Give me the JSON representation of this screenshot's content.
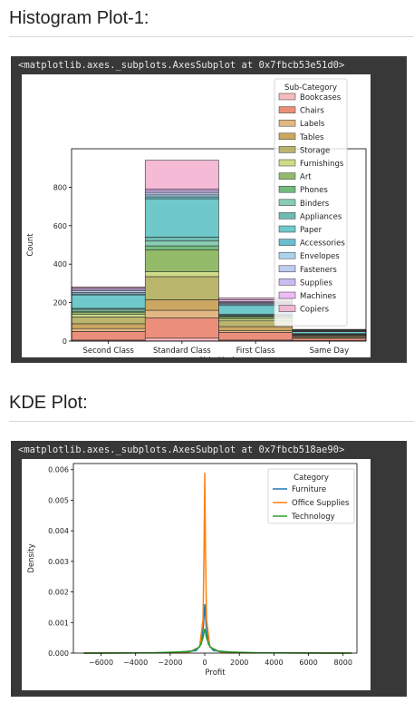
{
  "page": {
    "section1_title": "Histogram Plot-1:",
    "section2_title": "KDE Plot:",
    "output1": "<matplotlib.axes._subplots.AxesSubplot at 0x7fbcb53e51d0>",
    "output2": "<matplotlib.axes._subplots.AxesSubplot at 0x7fbcb518ae90>"
  },
  "chart_data": [
    {
      "type": "bar",
      "stacked": true,
      "xlabel": "Ship Mode",
      "ylabel": "Count",
      "categories": [
        "Second Class",
        "Standard Class",
        "First Class",
        "Same Day"
      ],
      "ylim": [
        0,
        1000
      ],
      "yticks": [
        0,
        200,
        400,
        600,
        800
      ],
      "legend_title": "Sub-Category",
      "legend_position": "upper right",
      "series": [
        {
          "name": "Bookcases",
          "color": "#f6a3ad",
          "values": [
            5,
            15,
            5,
            2
          ]
        },
        {
          "name": "Chairs",
          "color": "#e4694d",
          "values": [
            45,
            105,
            40,
            12
          ]
        },
        {
          "name": "Labels",
          "color": "#d99f5a",
          "values": [
            15,
            40,
            10,
            5
          ]
        },
        {
          "name": "Tables",
          "color": "#bb8a2c",
          "values": [
            25,
            55,
            20,
            5
          ]
        },
        {
          "name": "Storage",
          "color": "#a39e3c",
          "values": [
            35,
            120,
            30,
            5
          ]
        },
        {
          "name": "Furnishings",
          "color": "#bfcf62",
          "values": [
            15,
            25,
            10,
            2
          ]
        },
        {
          "name": "Art",
          "color": "#6ea337",
          "values": [
            10,
            115,
            10,
            2
          ]
        },
        {
          "name": "Phones",
          "color": "#44a454",
          "values": [
            5,
            20,
            5,
            2
          ]
        },
        {
          "name": "Binders",
          "color": "#61bc9a",
          "values": [
            10,
            25,
            5,
            2
          ]
        },
        {
          "name": "Appliances",
          "color": "#3fa497",
          "values": [
            5,
            20,
            5,
            2
          ]
        },
        {
          "name": "Paper",
          "color": "#3fb6b8",
          "values": [
            70,
            200,
            45,
            10
          ]
        },
        {
          "name": "Accessories",
          "color": "#3aaabd",
          "values": [
            5,
            10,
            5,
            2
          ]
        },
        {
          "name": "Envelopes",
          "color": "#8fc6e6",
          "values": [
            8,
            10,
            5,
            2
          ]
        },
        {
          "name": "Fasteners",
          "color": "#a9b9ee",
          "values": [
            8,
            10,
            5,
            2
          ]
        },
        {
          "name": "Supplies",
          "color": "#b8a5ee",
          "values": [
            8,
            10,
            5,
            2
          ]
        },
        {
          "name": "Machines",
          "color": "#e8a5f5",
          "values": [
            8,
            10,
            10,
            2
          ]
        },
        {
          "name": "Copiers",
          "color": "#f2a4c8",
          "values": [
            5,
            150,
            10,
            2
          ]
        }
      ]
    },
    {
      "type": "line",
      "xlabel": "Profit",
      "ylabel": "Density",
      "xlim": [
        -7600,
        8800
      ],
      "ylim": [
        0,
        0.0062
      ],
      "xticks": [
        -6000,
        -4000,
        -2000,
        0,
        2000,
        4000,
        6000,
        8000
      ],
      "xticklabels": [
        "−6000",
        "−4000",
        "−2000",
        "0",
        "2000",
        "4000",
        "6000",
        "8000"
      ],
      "yticks": [
        0,
        0.001,
        0.002,
        0.003,
        0.004,
        0.005,
        0.006
      ],
      "yticklabels": [
        "0.000",
        "0.001",
        "0.002",
        "0.003",
        "0.004",
        "0.005",
        "0.006"
      ],
      "legend_title": "Category",
      "legend_position": "upper right",
      "series": [
        {
          "name": "Furniture",
          "color": "#1f77b4",
          "x": [
            -7000,
            -2000,
            -500,
            -200,
            -80,
            0,
            80,
            200,
            500,
            2000,
            8000
          ],
          "y": [
            0,
            1e-05,
            8e-05,
            0.0003,
            0.0009,
            0.0016,
            0.0009,
            0.0003,
            8e-05,
            1e-05,
            0
          ]
        },
        {
          "name": "Office Supplies",
          "color": "#ff7f0e",
          "x": [
            -7000,
            -1000,
            -300,
            -100,
            -40,
            0,
            40,
            100,
            300,
            1000,
            8500
          ],
          "y": [
            0,
            1e-05,
            0.0002,
            0.0011,
            0.0035,
            0.0059,
            0.0035,
            0.0011,
            0.0002,
            1e-05,
            0
          ]
        },
        {
          "name": "Technology",
          "color": "#2ca02c",
          "x": [
            -7000,
            -3000,
            -800,
            -300,
            -100,
            0,
            100,
            300,
            800,
            3000,
            8500
          ],
          "y": [
            0,
            1e-05,
            5e-05,
            0.0002,
            0.0005,
            0.0008,
            0.0005,
            0.0002,
            5e-05,
            1e-05,
            0
          ]
        }
      ]
    }
  ]
}
